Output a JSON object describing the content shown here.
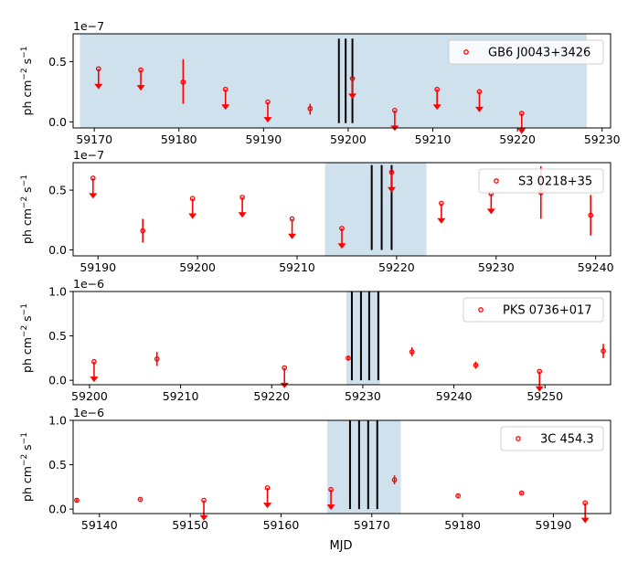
{
  "figure": {
    "xlabel": "MJD",
    "ylabel_parts": [
      "ph cm",
      "−2",
      " s",
      "−1"
    ]
  },
  "chart_data": [
    {
      "type": "scatter",
      "source": "GB6 J0043+3426",
      "scale_label": "1e−7",
      "multiplier": 1e-07,
      "xlim": [
        59167.5,
        59231
      ],
      "ylim": [
        -0.05,
        0.73
      ],
      "xticks": [
        59170,
        59180,
        59190,
        59200,
        59210,
        59220,
        59230
      ],
      "yticks": [
        0.0,
        0.5
      ],
      "shaded_range": [
        59168.3,
        59228.2
      ],
      "vlines": [
        59198.9,
        59199.7,
        59200.5
      ],
      "vline_range": [
        -0.01,
        0.69
      ],
      "points": [
        {
          "x": 59170.5,
          "y": 0.44,
          "upper_limit": true
        },
        {
          "x": 59175.5,
          "y": 0.43,
          "upper_limit": true
        },
        {
          "x": 59180.5,
          "y": 0.33,
          "err": [
            0.18,
            0.19
          ]
        },
        {
          "x": 59185.5,
          "y": 0.27,
          "upper_limit": true
        },
        {
          "x": 59190.5,
          "y": 0.165,
          "upper_limit": true
        },
        {
          "x": 59195.5,
          "y": 0.11,
          "err": [
            0.05,
            0.04
          ]
        },
        {
          "x": 59200.5,
          "y": 0.36,
          "upper_limit": true
        },
        {
          "x": 59205.5,
          "y": 0.095,
          "upper_limit": true
        },
        {
          "x": 59210.5,
          "y": 0.27,
          "upper_limit": true
        },
        {
          "x": 59215.5,
          "y": 0.25,
          "upper_limit": true
        },
        {
          "x": 59220.5,
          "y": 0.07,
          "upper_limit": true
        }
      ]
    },
    {
      "type": "scatter",
      "source": "S3 0218+35",
      "scale_label": "1e−7",
      "multiplier": 1e-07,
      "xlim": [
        59187.5,
        59241.5
      ],
      "ylim": [
        -0.05,
        0.73
      ],
      "xticks": [
        59190,
        59200,
        59210,
        59220,
        59230,
        59240
      ],
      "yticks": [
        0.0,
        0.5
      ],
      "shaded_range": [
        59212.8,
        59223
      ],
      "vlines": [
        59217.5,
        59218.5,
        59219.5
      ],
      "vline_range": [
        0.0,
        0.71
      ],
      "points": [
        {
          "x": 59189.5,
          "y": 0.6,
          "upper_limit": true
        },
        {
          "x": 59194.5,
          "y": 0.16,
          "err": [
            0.1,
            0.1
          ]
        },
        {
          "x": 59199.5,
          "y": 0.43,
          "upper_limit": true
        },
        {
          "x": 59204.5,
          "y": 0.44,
          "upper_limit": true
        },
        {
          "x": 59209.5,
          "y": 0.26,
          "upper_limit": true
        },
        {
          "x": 59214.5,
          "y": 0.18,
          "upper_limit": true
        },
        {
          "x": 59219.5,
          "y": 0.65,
          "upper_limit": true
        },
        {
          "x": 59224.5,
          "y": 0.39,
          "upper_limit": true
        },
        {
          "x": 59229.5,
          "y": 0.47,
          "upper_limit": true
        },
        {
          "x": 59234.5,
          "y": 0.48,
          "err": [
            0.22,
            0.22
          ]
        },
        {
          "x": 59239.5,
          "y": 0.29,
          "err": [
            0.17,
            0.17
          ]
        }
      ]
    },
    {
      "type": "scatter",
      "source": "PKS 0736+017",
      "scale_label": "1e−6",
      "multiplier": 1e-06,
      "xlim": [
        59198.2,
        59257.2
      ],
      "ylim": [
        -0.05,
        1.0
      ],
      "xticks": [
        59200,
        59210,
        59220,
        59230,
        59240,
        59250
      ],
      "yticks": [
        0.0,
        0.5,
        1.0
      ],
      "shaded_range": [
        59228.2,
        59231.9
      ],
      "vlines": [
        59228.8,
        59229.8,
        59230.7,
        59231.7
      ],
      "vline_range": [
        0.0,
        1.0
      ],
      "points": [
        {
          "x": 59200.5,
          "y": 0.21,
          "upper_limit": true
        },
        {
          "x": 59207.4,
          "y": 0.24,
          "err": [
            0.08,
            0.08
          ]
        },
        {
          "x": 59221.4,
          "y": 0.14,
          "upper_limit": true
        },
        {
          "x": 59228.4,
          "y": 0.25,
          "err": [
            0.02,
            0.02
          ]
        },
        {
          "x": 59235.4,
          "y": 0.32,
          "err": [
            0.05,
            0.05
          ]
        },
        {
          "x": 59242.4,
          "y": 0.17,
          "err": [
            0.04,
            0.04
          ]
        },
        {
          "x": 59249.4,
          "y": 0.1,
          "upper_limit": true
        },
        {
          "x": 59256.4,
          "y": 0.33,
          "err": [
            0.08,
            0.08
          ]
        }
      ]
    },
    {
      "type": "scatter",
      "source": "3C 454.3",
      "scale_label": "1e−6",
      "multiplier": 1e-06,
      "xlim": [
        59137.1,
        59196.3
      ],
      "ylim": [
        -0.05,
        1.0
      ],
      "xticks": [
        59140,
        59150,
        59160,
        59170,
        59180,
        59190
      ],
      "yticks": [
        0.0,
        0.5,
        1.0
      ],
      "shaded_range": [
        59165.1,
        59173.2
      ],
      "vlines": [
        59167.6,
        59168.6,
        59169.6,
        59170.6
      ],
      "vline_range": [
        0.0,
        1.0
      ],
      "points": [
        {
          "x": 59137.5,
          "y": 0.1,
          "err": [
            0.02,
            0.02
          ]
        },
        {
          "x": 59144.5,
          "y": 0.11,
          "err": [
            0.01,
            0.01
          ]
        },
        {
          "x": 59151.5,
          "y": 0.1,
          "upper_limit": true
        },
        {
          "x": 59158.5,
          "y": 0.24,
          "upper_limit": true
        },
        {
          "x": 59165.5,
          "y": 0.22,
          "upper_limit": true
        },
        {
          "x": 59172.5,
          "y": 0.33,
          "err": [
            0.05,
            0.05
          ]
        },
        {
          "x": 59179.5,
          "y": 0.15,
          "err": [
            0.01,
            0.01
          ]
        },
        {
          "x": 59186.5,
          "y": 0.18,
          "err": [
            0.01,
            0.01
          ]
        },
        {
          "x": 59193.5,
          "y": 0.07,
          "upper_limit": true
        }
      ]
    }
  ],
  "colors": {
    "points": "#ff0000",
    "shade": "#d0e1ee",
    "vline": "#000000",
    "legend_border": "#d0d0d0"
  }
}
